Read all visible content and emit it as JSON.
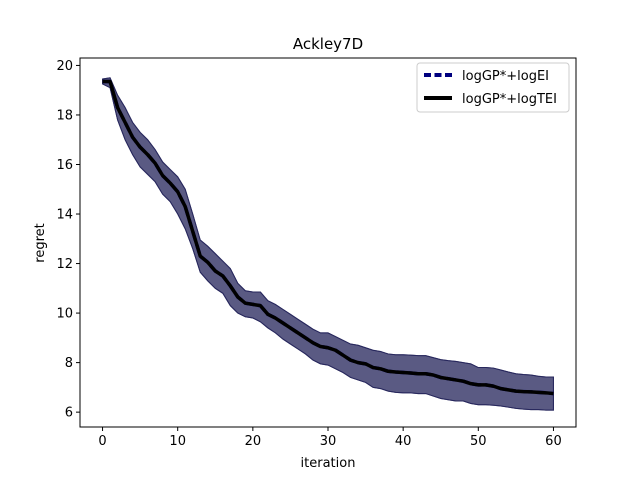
{
  "chart_data": {
    "type": "line",
    "title": "Ackley7D",
    "xlabel": "iteration",
    "ylabel": "regret",
    "xlim": [
      -3,
      63
    ],
    "ylim": [
      5.4,
      20.3
    ],
    "xticks": [
      0,
      10,
      20,
      30,
      40,
      50,
      60
    ],
    "yticks": [
      6,
      8,
      10,
      12,
      14,
      16,
      18,
      20
    ],
    "grid": false,
    "legend_position": "top-right",
    "x": [
      0,
      1,
      2,
      3,
      4,
      5,
      6,
      7,
      8,
      9,
      10,
      11,
      12,
      13,
      14,
      15,
      16,
      17,
      18,
      19,
      20,
      21,
      22,
      23,
      24,
      25,
      26,
      27,
      28,
      29,
      30,
      31,
      32,
      33,
      34,
      35,
      36,
      37,
      38,
      39,
      40,
      41,
      42,
      43,
      44,
      45,
      46,
      47,
      48,
      49,
      50,
      51,
      52,
      53,
      54,
      55,
      56,
      57,
      58,
      59,
      60
    ],
    "series": [
      {
        "name": "logGP*+logEI",
        "color": "#00007f",
        "style": "dashed",
        "mean": [
          19.35,
          19.35,
          18.3,
          17.7,
          17.1,
          16.7,
          16.4,
          16.05,
          15.55,
          15.25,
          14.9,
          14.3,
          13.3,
          12.3,
          12.05,
          11.7,
          11.5,
          11.1,
          10.65,
          10.4,
          10.35,
          10.3,
          9.95,
          9.8,
          9.6,
          9.4,
          9.2,
          9.0,
          8.8,
          8.65,
          8.6,
          8.5,
          8.3,
          8.1,
          8.0,
          7.95,
          7.8,
          7.75,
          7.65,
          7.62,
          7.6,
          7.58,
          7.55,
          7.55,
          7.5,
          7.4,
          7.35,
          7.3,
          7.25,
          7.15,
          7.1,
          7.1,
          7.05,
          6.95,
          6.9,
          6.85,
          6.83,
          6.82,
          6.8,
          6.78,
          6.75
        ],
        "lower": [
          19.25,
          19.1,
          17.8,
          17.0,
          16.4,
          15.9,
          15.6,
          15.3,
          14.8,
          14.5,
          14.0,
          13.4,
          12.6,
          11.65,
          11.3,
          11.0,
          10.8,
          10.3,
          10.0,
          9.85,
          9.8,
          9.65,
          9.4,
          9.2,
          8.95,
          8.75,
          8.55,
          8.35,
          8.1,
          7.95,
          7.9,
          7.75,
          7.6,
          7.4,
          7.3,
          7.2,
          7.0,
          6.95,
          6.85,
          6.8,
          6.78,
          6.78,
          6.75,
          6.75,
          6.65,
          6.55,
          6.5,
          6.45,
          6.45,
          6.35,
          6.3,
          6.3,
          6.28,
          6.25,
          6.2,
          6.15,
          6.12,
          6.1,
          6.1,
          6.08,
          6.08
        ],
        "upper": [
          19.45,
          19.5,
          18.8,
          18.3,
          17.7,
          17.3,
          17.0,
          16.6,
          16.1,
          15.8,
          15.5,
          15.0,
          14.0,
          12.95,
          12.7,
          12.4,
          12.1,
          11.8,
          11.2,
          10.9,
          10.85,
          10.85,
          10.5,
          10.35,
          10.15,
          9.95,
          9.75,
          9.55,
          9.35,
          9.2,
          9.2,
          9.05,
          8.9,
          8.75,
          8.7,
          8.6,
          8.5,
          8.45,
          8.35,
          8.32,
          8.32,
          8.3,
          8.28,
          8.28,
          8.2,
          8.12,
          8.08,
          8.05,
          8.0,
          7.95,
          7.8,
          7.8,
          7.78,
          7.7,
          7.62,
          7.55,
          7.52,
          7.5,
          7.45,
          7.42,
          7.42
        ]
      },
      {
        "name": "logGP*+logTEI",
        "color": "#000000",
        "style": "solid",
        "mean": [
          19.35,
          19.35,
          18.3,
          17.7,
          17.1,
          16.7,
          16.4,
          16.05,
          15.55,
          15.25,
          14.9,
          14.3,
          13.3,
          12.3,
          12.05,
          11.7,
          11.5,
          11.1,
          10.65,
          10.4,
          10.35,
          10.3,
          9.95,
          9.8,
          9.6,
          9.4,
          9.2,
          9.0,
          8.8,
          8.65,
          8.6,
          8.5,
          8.3,
          8.1,
          8.0,
          7.95,
          7.8,
          7.75,
          7.65,
          7.62,
          7.6,
          7.58,
          7.55,
          7.55,
          7.5,
          7.4,
          7.35,
          7.3,
          7.25,
          7.15,
          7.1,
          7.1,
          7.05,
          6.95,
          6.9,
          6.85,
          6.83,
          6.82,
          6.8,
          6.78,
          6.75
        ],
        "lower": [
          19.25,
          19.1,
          17.8,
          17.0,
          16.4,
          15.9,
          15.6,
          15.3,
          14.8,
          14.5,
          14.0,
          13.4,
          12.6,
          11.65,
          11.3,
          11.0,
          10.8,
          10.3,
          10.0,
          9.85,
          9.8,
          9.65,
          9.4,
          9.2,
          8.95,
          8.75,
          8.55,
          8.35,
          8.1,
          7.95,
          7.9,
          7.75,
          7.6,
          7.4,
          7.3,
          7.2,
          7.0,
          6.95,
          6.85,
          6.8,
          6.78,
          6.78,
          6.75,
          6.75,
          6.65,
          6.55,
          6.5,
          6.45,
          6.45,
          6.35,
          6.3,
          6.3,
          6.28,
          6.25,
          6.2,
          6.15,
          6.12,
          6.1,
          6.1,
          6.08,
          6.08
        ],
        "upper": [
          19.45,
          19.5,
          18.8,
          18.3,
          17.7,
          17.3,
          17.0,
          16.6,
          16.1,
          15.8,
          15.5,
          15.0,
          14.0,
          12.95,
          12.7,
          12.4,
          12.1,
          11.8,
          11.2,
          10.9,
          10.85,
          10.85,
          10.5,
          10.35,
          10.15,
          9.95,
          9.75,
          9.55,
          9.35,
          9.2,
          9.2,
          9.05,
          8.9,
          8.75,
          8.7,
          8.6,
          8.5,
          8.45,
          8.35,
          8.32,
          8.32,
          8.3,
          8.28,
          8.28,
          8.2,
          8.12,
          8.08,
          8.05,
          8.0,
          7.95,
          7.8,
          7.8,
          7.78,
          7.7,
          7.62,
          7.55,
          7.52,
          7.5,
          7.45,
          7.42,
          7.42
        ]
      }
    ],
    "band_color": "#24245a"
  }
}
